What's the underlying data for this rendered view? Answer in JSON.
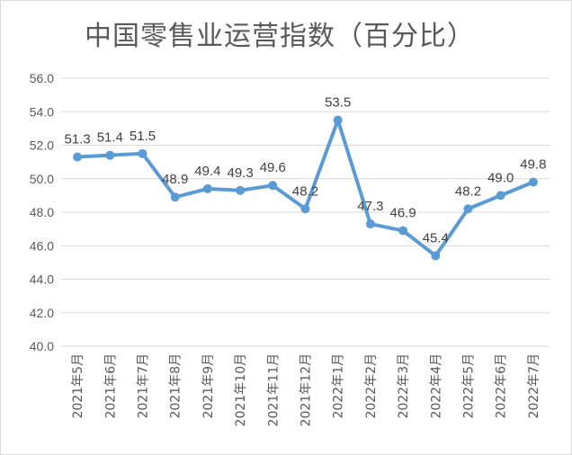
{
  "chart_data": {
    "type": "line",
    "title": "中国零售业运营指数（百分比）",
    "categories": [
      "2021年5月",
      "2021年6月",
      "2021年7月",
      "2021年8月",
      "2021年9月",
      "2021年10月",
      "2021年11月",
      "2021年12月",
      "2022年1月",
      "2022年2月",
      "2022年3月",
      "2022年4月",
      "2022年5月",
      "2022年6月",
      "2022年7月"
    ],
    "values": [
      51.3,
      51.4,
      51.5,
      48.9,
      49.4,
      49.3,
      49.6,
      48.2,
      53.5,
      47.3,
      46.9,
      45.4,
      48.2,
      49.0,
      49.8
    ],
    "value_labels": [
      "51.3",
      "51.4",
      "51.5",
      "48.9",
      "49.4",
      "49.3",
      "49.6",
      "48.2",
      "53.5",
      "47.3",
      "46.9",
      "45.4",
      "48.2",
      "49.0",
      "49.8"
    ],
    "ylim": [
      40.0,
      56.0
    ],
    "yticks": [
      "40.0",
      "42.0",
      "44.0",
      "46.0",
      "48.0",
      "50.0",
      "52.0",
      "54.0",
      "56.0"
    ],
    "xlabel": "",
    "ylabel": "",
    "grid": true,
    "legend": "none",
    "colors": {
      "line": "#5b9bd5",
      "grid": "#d9d9d9",
      "text": "#595959"
    }
  }
}
